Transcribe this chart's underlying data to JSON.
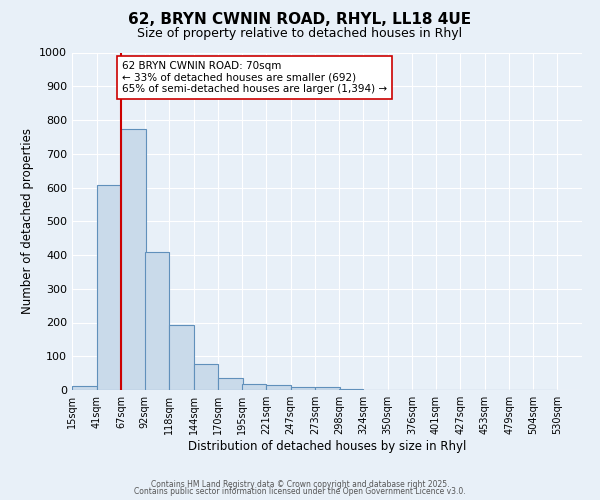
{
  "title_line1": "62, BRYN CWNIN ROAD, RHYL, LL18 4UE",
  "title_line2": "Size of property relative to detached houses in Rhyl",
  "xlabel": "Distribution of detached houses by size in Rhyl",
  "ylabel": "Number of detached properties",
  "bar_left_edges": [
    15,
    41,
    67,
    92,
    118,
    144,
    170,
    195,
    221,
    247,
    273,
    298,
    324,
    350,
    376,
    401,
    427,
    453,
    479,
    504
  ],
  "bar_heights": [
    12,
    607,
    773,
    410,
    192,
    78,
    37,
    17,
    16,
    10,
    10,
    2,
    0,
    0,
    0,
    0,
    0,
    0,
    0,
    0
  ],
  "bin_width": 26,
  "bar_color": "#c9daea",
  "bar_edge_color": "#6090bb",
  "property_line_x": 67,
  "property_line_color": "#cc0000",
  "annotation_text": "62 BRYN CWNIN ROAD: 70sqm\n← 33% of detached houses are smaller (692)\n65% of semi-detached houses are larger (1,394) →",
  "annotation_box_color": "#ffffff",
  "annotation_box_edge_color": "#cc0000",
  "ylim": [
    0,
    1000
  ],
  "yticks": [
    0,
    100,
    200,
    300,
    400,
    500,
    600,
    700,
    800,
    900,
    1000
  ],
  "tick_labels": [
    "15sqm",
    "41sqm",
    "67sqm",
    "92sqm",
    "118sqm",
    "144sqm",
    "170sqm",
    "195sqm",
    "221sqm",
    "247sqm",
    "273sqm",
    "298sqm",
    "324sqm",
    "350sqm",
    "376sqm",
    "401sqm",
    "427sqm",
    "453sqm",
    "479sqm",
    "504sqm",
    "530sqm"
  ],
  "background_color": "#e8f0f8",
  "grid_color": "#ffffff",
  "footer_line1": "Contains HM Land Registry data © Crown copyright and database right 2025.",
  "footer_line2": "Contains public sector information licensed under the Open Government Licence v3.0."
}
